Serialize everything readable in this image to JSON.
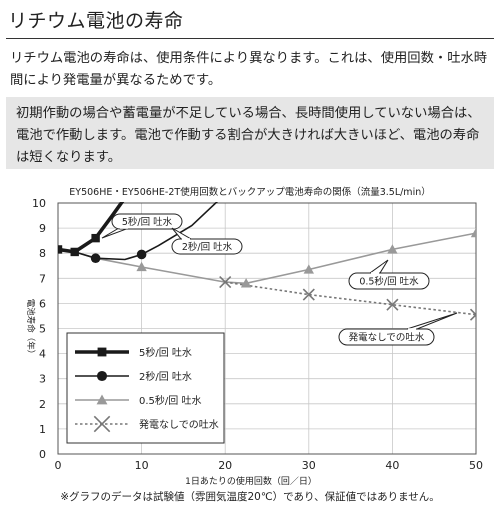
{
  "page": {
    "title": "リチウム電池の寿命",
    "description": "リチウム電池の寿命は、使用条件により異なります。これは、使用回数・吐水時間により発電量が異なるためです。",
    "note": "初期作動の場合や蓄電量が不足している場合、長時間使用していない場合は、電池で作動します。電池で作動する割合が大きければ大きいほど、電池の寿命は短くなります。",
    "footnote": "※グラフのデータは試験値（雰囲気温度20℃）であり、保証値ではありません。"
  },
  "chart_data": {
    "type": "line",
    "title": "EY506HE・EY506HE-2T使用回数とバックアップ電池寿命の関係（流量3.5L/min）",
    "xlabel": "1日あたりの使用回数（回／日）",
    "ylabel": "電池寿命（年）",
    "xlim": [
      0,
      50
    ],
    "ylim": [
      0,
      10
    ],
    "xticks": [
      "0",
      "10",
      "20",
      "30",
      "40",
      "50"
    ],
    "yticks": [
      "0",
      "1",
      "2",
      "3",
      "4",
      "5",
      "6",
      "7",
      "8",
      "9",
      "10"
    ],
    "grid": true,
    "legend_position": "bottom-left",
    "series": [
      {
        "name": "5秒/回 吐水",
        "marker": "square",
        "style": "bold",
        "color": "#1a1a1a",
        "points": [
          [
            0,
            8.15
          ],
          [
            2,
            8.05
          ],
          [
            4.5,
            8.6
          ],
          [
            6.5,
            9.5
          ],
          [
            8,
            10.2
          ]
        ],
        "markers": [
          [
            0,
            8.15
          ],
          [
            2,
            8.05
          ],
          [
            4.5,
            8.6
          ]
        ]
      },
      {
        "name": "2秒/回 吐水",
        "marker": "circle",
        "style": "solid",
        "color": "#1a1a1a",
        "points": [
          [
            0,
            8.15
          ],
          [
            2,
            8.05
          ],
          [
            4.5,
            7.8
          ],
          [
            8,
            7.75
          ],
          [
            10,
            7.95
          ],
          [
            12,
            8.3
          ],
          [
            16,
            9.1
          ],
          [
            19.5,
            10.2
          ]
        ],
        "markers": [
          [
            4.5,
            7.8
          ],
          [
            10,
            7.95
          ]
        ]
      },
      {
        "name": "0.5秒/回 吐水",
        "marker": "triangle",
        "style": "solid",
        "color": "#999999",
        "points": [
          [
            0,
            8.15
          ],
          [
            2,
            8.05
          ],
          [
            4.5,
            7.8
          ],
          [
            10,
            7.45
          ],
          [
            20,
            6.85
          ],
          [
            22.5,
            6.8
          ],
          [
            30,
            7.35
          ],
          [
            40,
            8.15
          ],
          [
            50,
            8.8
          ]
        ],
        "markers": [
          [
            10,
            7.45
          ],
          [
            22.5,
            6.8
          ],
          [
            30,
            7.35
          ],
          [
            40,
            8.15
          ],
          [
            50,
            8.8
          ]
        ]
      },
      {
        "name": "発電なしでの吐水",
        "marker": "x",
        "style": "dotted",
        "color": "#777777",
        "points": [
          [
            20,
            6.85
          ],
          [
            30,
            6.35
          ],
          [
            40,
            5.95
          ],
          [
            50,
            5.55
          ]
        ],
        "markers": [
          [
            20,
            6.85
          ],
          [
            30,
            6.35
          ],
          [
            40,
            5.95
          ],
          [
            50,
            5.55
          ]
        ]
      }
    ],
    "callouts": [
      {
        "text": "5秒/回 吐水",
        "series": "5秒/回 吐水"
      },
      {
        "text": "2秒/回 吐水",
        "series": "2秒/回 吐水"
      },
      {
        "text": "0.5秒/回 吐水",
        "series": "0.5秒/回 吐水"
      },
      {
        "text": "発電なしでの吐水",
        "series": "発電なしでの吐水"
      }
    ]
  }
}
